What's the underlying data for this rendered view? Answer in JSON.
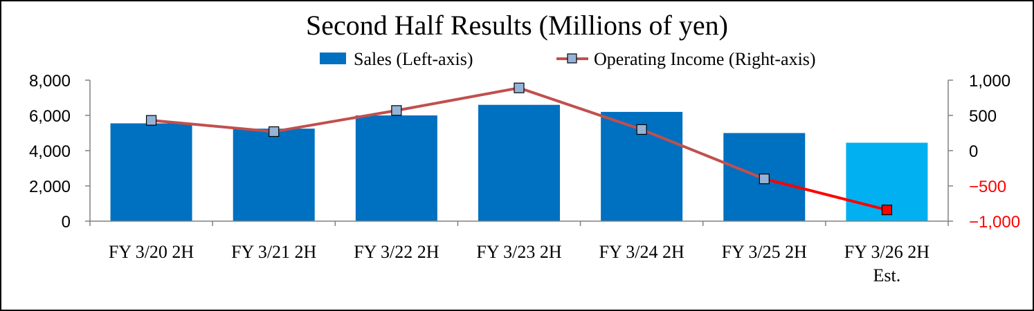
{
  "chart_data": {
    "type": "bar",
    "title": "Second Half Results (Millions of yen)",
    "categories": [
      [
        "FY 3/20 2H"
      ],
      [
        "FY 3/21 2H"
      ],
      [
        "FY 3/22 2H"
      ],
      [
        "FY 3/23 2H"
      ],
      [
        "FY 3/24 2H"
      ],
      [
        "FY 3/25 2H"
      ],
      [
        "FY 3/26 2H",
        "Est."
      ]
    ],
    "legend": {
      "placement": "top",
      "sales_label": "Sales (Left-axis)",
      "income_label": "Operating Income (Right-axis)"
    },
    "y_left": {
      "range": [
        0,
        8000
      ],
      "ticks": [
        0,
        2000,
        4000,
        6000,
        8000
      ],
      "tick_labels": [
        "0",
        "2,000",
        "4,000",
        "6,000",
        "8,000"
      ]
    },
    "y_right": {
      "range": [
        -1000,
        1000
      ],
      "ticks": [
        -1000,
        -500,
        0,
        500,
        1000
      ],
      "tick_labels": [
        "−1,000",
        "−500",
        "0",
        "500",
        "1,000"
      ]
    },
    "series": [
      {
        "name": "Sales (Left-axis)",
        "kind": "bar",
        "axis": "left",
        "values": [
          5550,
          5250,
          6000,
          6600,
          6200,
          5000,
          4450
        ],
        "color": "#0070c0",
        "estimate_color": "#00b0f0"
      },
      {
        "name": "Operating Income (Right-axis)",
        "kind": "line",
        "axis": "right",
        "values": [
          430,
          270,
          570,
          890,
          300,
          -400,
          -840
        ],
        "line_color": "#c0504d",
        "marker_fill": "#95b3d7",
        "estimate_color": "#ff0000"
      }
    ],
    "estimate_index": 6,
    "negative_tick_color": "#ff0000",
    "grid": false
  }
}
